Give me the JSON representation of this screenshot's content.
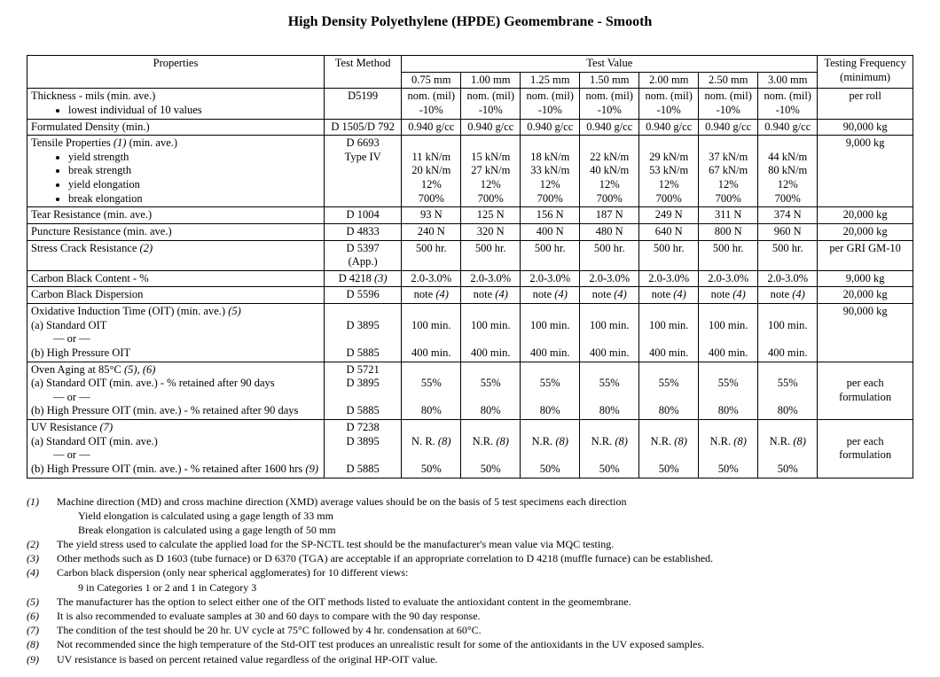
{
  "title": "High Density Polyethylene (HPDE) Geomembrane - Smooth",
  "headers": {
    "properties": "Properties",
    "method": "Test Method",
    "testvalue": "Test Value",
    "freq": "Testing Frequency (minimum)",
    "cols": [
      "0.75 mm",
      "1.00 mm",
      "1.25 mm",
      "1.50 mm",
      "2.00 mm",
      "2.50 mm",
      "3.00 mm"
    ]
  },
  "rows": [
    {
      "prop": [
        "Thickness - mils (min. ave.)",
        "<ul><li>lowest individual of 10 values</li></ul>"
      ],
      "method": "D5199",
      "vals": [
        "nom. (mil) -10%",
        "nom. (mil) -10%",
        "nom. (mil) -10%",
        "nom. (mil) -10%",
        "nom. (mil) -10%",
        "nom. (mil) -10%",
        "nom. (mil) -10%"
      ],
      "freq": "per roll"
    },
    {
      "prop": [
        "Formulated Density (min.)"
      ],
      "method": "D 1505/D 792",
      "vals": [
        "0.940 g/cc",
        "0.940 g/cc",
        "0.940 g/cc",
        "0.940 g/cc",
        "0.940 g/cc",
        "0.940 g/cc",
        "0.940 g/cc"
      ],
      "freq": "90,000 kg"
    },
    {
      "prop": [
        "Tensile Properties <span class=\"ital\">(1)</span> (min. ave.)",
        "<ul><li>yield strength</li><li>break strength</li><li>yield elongation</li><li>break elongation</li></ul>"
      ],
      "method": "D 6693<br>Type IV",
      "vals": [
        "<br>11 kN/m<br>20 kN/m<br>12%<br>700%",
        "<br>15 kN/m<br>27 kN/m<br>12%<br>700%",
        "<br>18 kN/m<br>33 kN/m<br>12%<br>700%",
        "<br>22 kN/m<br>40 kN/m<br>12%<br>700%",
        "<br>29 kN/m<br>53 kN/m<br>12%<br>700%",
        "<br>37 kN/m<br>67 kN/m<br>12%<br>700%",
        "<br>44 kN/m<br>80 kN/m<br>12%<br>700%"
      ],
      "freq": "9,000 kg"
    },
    {
      "prop": [
        "Tear Resistance  (min. ave.)"
      ],
      "method": "D 1004",
      "vals": [
        "93 N",
        "125 N",
        "156 N",
        "187 N",
        "249 N",
        "311 N",
        "374 N"
      ],
      "freq": "20,000 kg"
    },
    {
      "prop": [
        "Puncture Resistance (min. ave.)"
      ],
      "method": "D 4833",
      "vals": [
        "240 N",
        "320 N",
        "400 N",
        "480 N",
        "640 N",
        "800 N",
        "960 N"
      ],
      "freq": "20,000 kg"
    },
    {
      "prop": [
        "Stress Crack Resistance <span class=\"ital\">(2)</span>"
      ],
      "method": "D 5397<br>(App.)",
      "vals": [
        "500 hr.",
        "500 hr.",
        "500 hr.",
        "500 hr.",
        "500 hr.",
        "500 hr.",
        "500 hr."
      ],
      "freq": "per GRI GM-10"
    },
    {
      "prop": [
        "Carbon Black Content - %"
      ],
      "method": "D 4218 <span class=\"ital\">(3)</span>",
      "vals": [
        "2.0-3.0%",
        "2.0-3.0%",
        "2.0-3.0%",
        "2.0-3.0%",
        "2.0-3.0%",
        "2.0-3.0%",
        "2.0-3.0%"
      ],
      "freq": "9,000 kg"
    },
    {
      "prop": [
        "Carbon Black Dispersion"
      ],
      "method": "D 5596",
      "vals": [
        "note <span class=\"ital\">(4)</span>",
        "note <span class=\"ital\">(4)</span>",
        "note <span class=\"ital\">(4)</span>",
        "note <span class=\"ital\">(4)</span>",
        "note <span class=\"ital\">(4)</span>",
        "note <span class=\"ital\">(4)</span>",
        "note <span class=\"ital\">(4)</span>"
      ],
      "freq": "20,000 kg"
    },
    {
      "prop": [
        "Oxidative Induction Time (OIT) (min. ave.) <span class=\"ital\">(5)</span><br>(a) Standard OIT<br>&nbsp;&nbsp;&nbsp;&nbsp;&nbsp;&nbsp;&nbsp;&nbsp;— or —<br>(b) High Pressure OIT"
      ],
      "method": "<br>D 3895<br><br>D 5885",
      "vals": [
        "<br>100 min.<br><br>400 min.",
        "<br>100 min.<br><br>400 min.",
        "<br>100 min.<br><br>400 min.",
        "<br>100 min.<br><br>400 min.",
        "<br>100 min.<br><br>400 min.",
        "<br>100 min.<br><br>400 min.",
        "<br>100 min.<br><br>400 min."
      ],
      "freq": "90,000 kg"
    },
    {
      "prop": [
        "Oven Aging at 85°C <span class=\"ital\">(5), (6)</span><br>(a) Standard OIT (min. ave.) - % retained after 90 days<br>&nbsp;&nbsp;&nbsp;&nbsp;&nbsp;&nbsp;&nbsp;&nbsp;— or —<br>(b) High Pressure OIT (min. ave.) - % retained after 90 days"
      ],
      "method": "D 5721<br>D 3895<br><br>D 5885",
      "vals": [
        "<br>55%<br><br>80%",
        "<br>55%<br><br>80%",
        "<br>55%<br><br>80%",
        "<br>55%<br><br>80%",
        "<br>55%<br><br>80%",
        "<br>55%<br><br>80%",
        "<br>55%<br><br>80%"
      ],
      "freq": "<br>per each formulation"
    },
    {
      "prop": [
        "UV Resistance <span class=\"ital\">(7)</span><br>(a) Standard OIT (min. ave.)<br>&nbsp;&nbsp;&nbsp;&nbsp;&nbsp;&nbsp;&nbsp;&nbsp;— or —<br>(b) High Pressure OIT (min. ave.) - % retained after 1600 hrs <span class=\"ital\">(9)</span>"
      ],
      "method": "D 7238<br>D 3895<br><br>D 5885",
      "vals": [
        "<br>N. R. <span class=\"ital\">(8)</span><br><br>50%",
        "<br>N.R. <span class=\"ital\">(8)</span><br><br>50%",
        "<br>N.R. <span class=\"ital\">(8)</span><br><br>50%",
        "<br>N.R. <span class=\"ital\">(8)</span><br><br>50%",
        "<br>N.R. <span class=\"ital\">(8)</span><br><br>50%",
        "<br>N.R. <span class=\"ital\">(8)</span><br><br>50%",
        "<br>N.R. <span class=\"ital\">(8)</span><br><br>50%"
      ],
      "freq": "<br>per each formulation"
    }
  ],
  "notes": [
    {
      "tag": "(1)",
      "body": "Machine direction (MD) and cross machine direction (XMD) average values should be on the basis of 5 test specimens each direction"
    },
    {
      "tag": "",
      "body": "Yield elongation is calculated using a gage length of 33 mm",
      "indent": true
    },
    {
      "tag": "",
      "body": "Break elongation is calculated using a gage length of 50 mm",
      "indent": true
    },
    {
      "tag": "(2)",
      "body": "The yield stress used to calculate the applied load for the SP-NCTL test should be the manufacturer's mean value via MQC testing."
    },
    {
      "tag": "(3)",
      "body": "Other methods such as D 1603 (tube furnace) or D 6370 (TGA) are acceptable if an appropriate correlation to D 4218 (muffle furnace) can be established."
    },
    {
      "tag": "(4)",
      "body": " Carbon black dispersion (only near spherical agglomerates) for 10 different views:"
    },
    {
      "tag": "",
      "body": "9 in Categories 1 or 2 and 1 in Category 3",
      "indent": true
    },
    {
      "tag": "(5)",
      "body": "The manufacturer has the option to select either one of the OIT methods listed to evaluate the antioxidant content in the geomembrane."
    },
    {
      "tag": "(6)",
      "body": "It is also recommended to evaluate samples at 30 and 60 days to compare with the 90 day response."
    },
    {
      "tag": "(7)",
      "body": "The condition of the test should be 20 hr. UV cycle at 75°C followed by 4 hr. condensation at 60°C."
    },
    {
      "tag": "(8)",
      "body": "Not recommended since the high temperature of the Std-OIT test produces an unrealistic result for some of the antioxidants in the UV exposed samples."
    },
    {
      "tag": "(9)",
      "body": "UV resistance is based on percent retained value regardless of the original HP-OIT value."
    }
  ]
}
